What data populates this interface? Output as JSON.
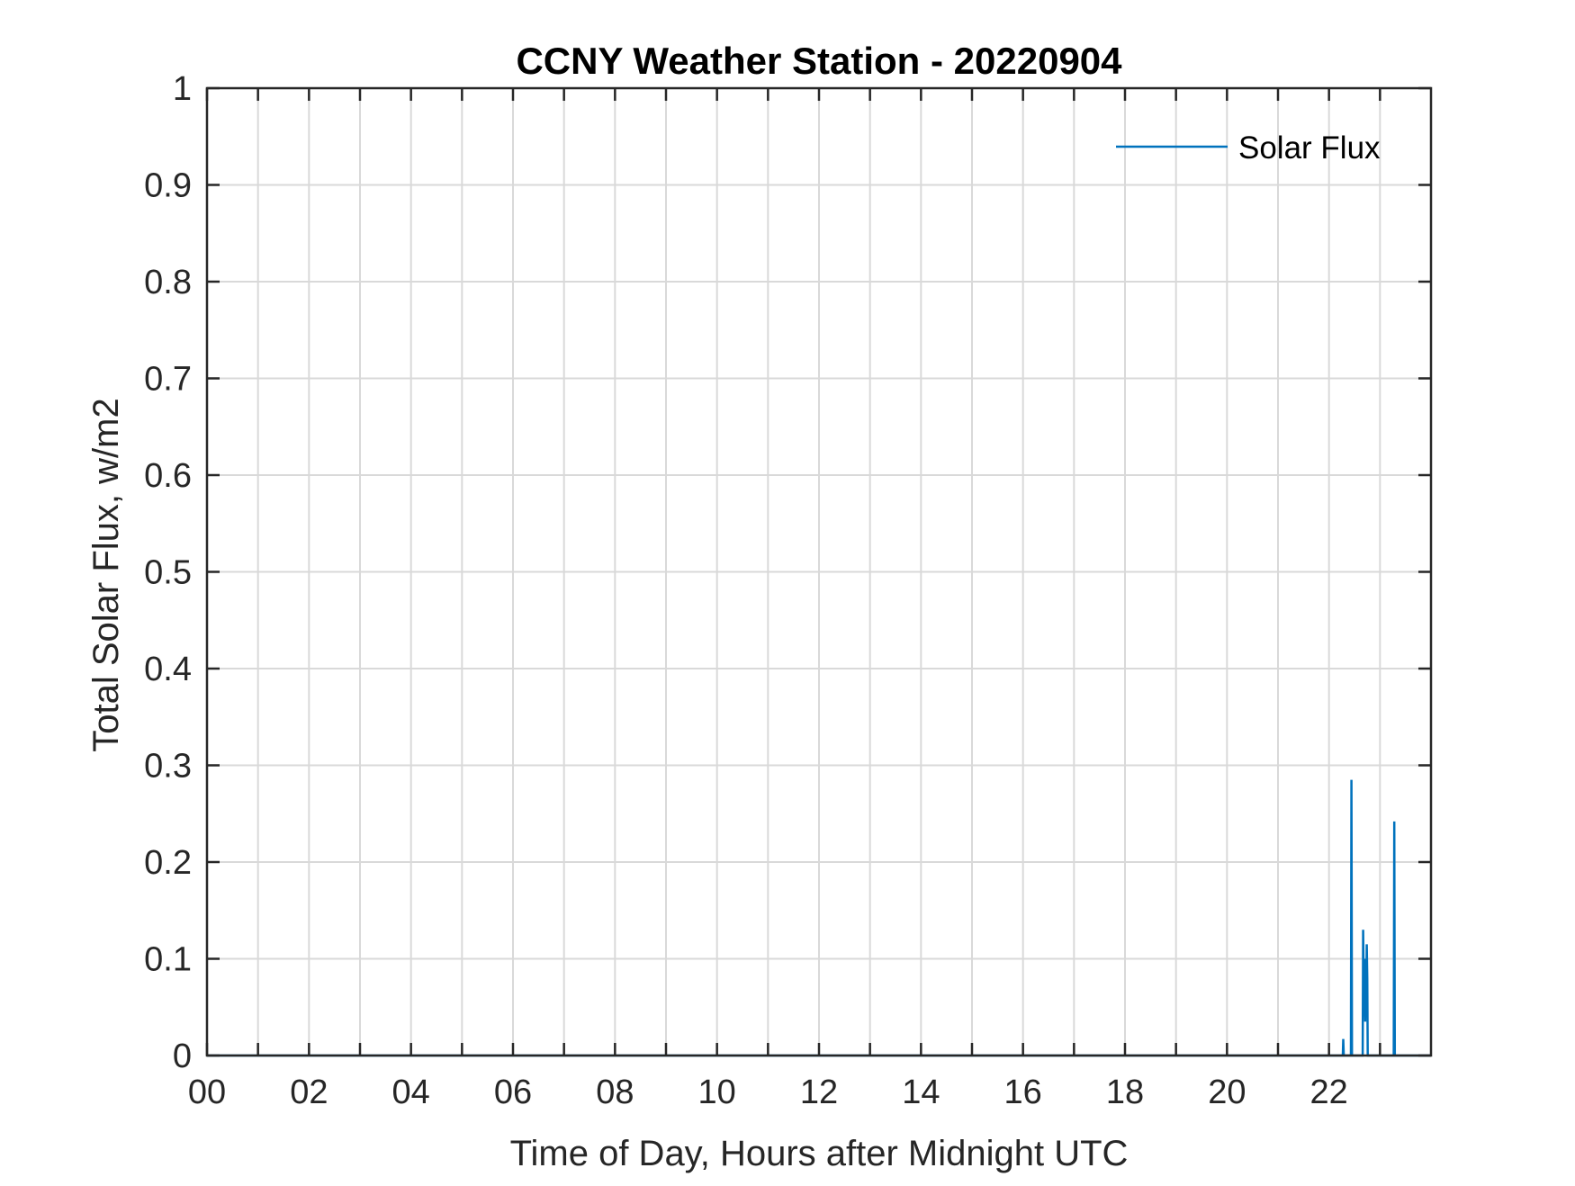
{
  "chart_data": {
    "type": "line",
    "title": "CCNY Weather Station - 20220904",
    "xlabel": "Time of Day, Hours after Midnight UTC",
    "ylabel": "Total Solar Flux, w/m2",
    "xlim": [
      0,
      24
    ],
    "ylim": [
      0,
      1
    ],
    "x_ticks": [
      0,
      2,
      4,
      6,
      8,
      10,
      12,
      14,
      16,
      18,
      20,
      22
    ],
    "x_tick_labels": [
      "00",
      "02",
      "04",
      "06",
      "08",
      "10",
      "12",
      "14",
      "16",
      "18",
      "20",
      "22"
    ],
    "x_minor_ticks": [
      1,
      3,
      5,
      7,
      9,
      11,
      13,
      15,
      17,
      19,
      21,
      23
    ],
    "y_ticks": [
      0,
      0.1,
      0.2,
      0.3,
      0.4,
      0.5,
      0.6,
      0.7,
      0.8,
      0.9,
      1
    ],
    "y_tick_labels": [
      "0",
      "0.1",
      "0.2",
      "0.3",
      "0.4",
      "0.5",
      "0.6",
      "0.7",
      "0.8",
      "0.9",
      "1"
    ],
    "grid": true,
    "legend_position": "top-right",
    "series": [
      {
        "name": "Solar Flux",
        "color": "#0072BD",
        "x": [
          0,
          22.27,
          22.28,
          22.29,
          22.43,
          22.44,
          22.45,
          22.66,
          22.67,
          22.68,
          22.69,
          22.7,
          22.71,
          22.72,
          22.73,
          22.74,
          22.75,
          22.76,
          22.77,
          22.78,
          23.27,
          23.28,
          23.29,
          24
        ],
        "y": [
          0,
          0,
          0.017,
          0,
          0,
          0.285,
          0,
          0,
          0.13,
          0.075,
          0.1,
          0.06,
          0.035,
          0.1,
          0.04,
          0.115,
          0.08,
          0,
          0,
          0,
          0,
          0.242,
          0,
          0
        ]
      }
    ]
  }
}
